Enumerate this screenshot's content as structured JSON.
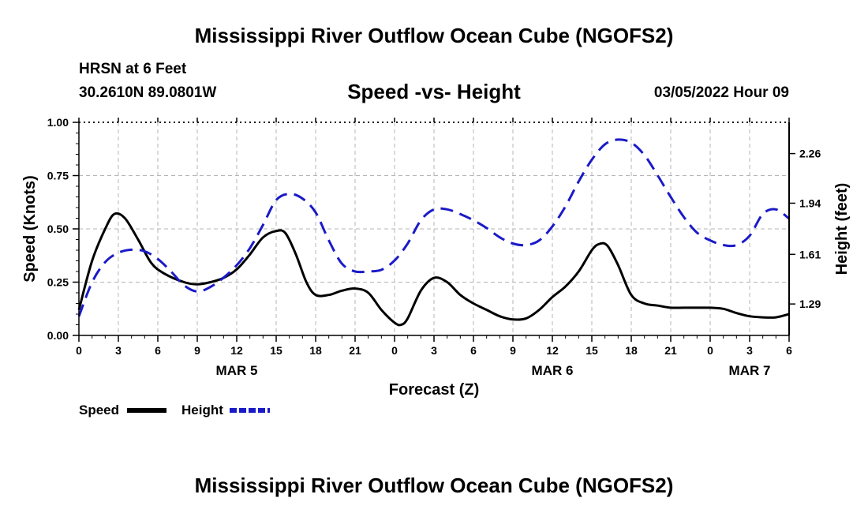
{
  "header": {
    "title": "Mississippi River Outflow Ocean Cube (NGOFS2)",
    "station": "HRSN at 6 Feet",
    "coords": "30.2610N  89.0801W",
    "subtitle": "Speed -vs- Height",
    "datetime": "03/05/2022 Hour 09"
  },
  "footer": {
    "title": "Mississippi River Outflow Ocean Cube (NGOFS2)"
  },
  "chart_data": {
    "type": "line",
    "title": "Speed -vs- Height",
    "xlabel": "Forecast (Z)",
    "ylabel": "Speed (Knots)",
    "y2label": "Height (feet)",
    "xlim": [
      0,
      54
    ],
    "ylim": [
      0,
      1.0
    ],
    "y2lim": [
      1.0872,
      2.4615
    ],
    "grid": true,
    "x_ticks": [
      0,
      3,
      6,
      9,
      12,
      15,
      18,
      21,
      24,
      27,
      30,
      33,
      36,
      39,
      42,
      45,
      48,
      51,
      54
    ],
    "x_tick_labels": [
      "0",
      "3",
      "6",
      "9",
      "12",
      "15",
      "18",
      "21",
      "0",
      "3",
      "6",
      "9",
      "12",
      "15",
      "18",
      "21",
      "0",
      "3",
      "6"
    ],
    "day_labels": [
      {
        "x": 12,
        "label": "MAR 5"
      },
      {
        "x": 36,
        "label": "MAR 6"
      },
      {
        "x": 51,
        "label": "MAR 7"
      }
    ],
    "y_ticks": [
      0,
      0.25,
      0.5,
      0.75,
      1.0
    ],
    "y_tick_labels": [
      "0.00",
      "0.25",
      "0.50",
      "0.75",
      "1.00"
    ],
    "y2_ticks": [
      1.29,
      1.61,
      1.94,
      2.26
    ],
    "y2_tick_labels": [
      "1.29",
      "1.61",
      "1.94",
      "2.26"
    ],
    "series": [
      {
        "name": "Speed",
        "axis": "left",
        "color": "#000000",
        "dash": "solid",
        "x": [
          0,
          1,
          2,
          2.7,
          3.5,
          4.5,
          5.5,
          6.5,
          8,
          9,
          10,
          11,
          12,
          13,
          14,
          15,
          15.7,
          16.5,
          17.3,
          18,
          19,
          20,
          21,
          22,
          23,
          24,
          24.5,
          25,
          26,
          27,
          28,
          29,
          30,
          31,
          32,
          33,
          34,
          35,
          36,
          37,
          38,
          39,
          39.6,
          40.2,
          41,
          42,
          43,
          44,
          45,
          46,
          47,
          48,
          49,
          50,
          51,
          52,
          53,
          54
        ],
        "values": [
          0.12,
          0.35,
          0.5,
          0.57,
          0.55,
          0.45,
          0.34,
          0.29,
          0.25,
          0.24,
          0.25,
          0.27,
          0.31,
          0.38,
          0.46,
          0.49,
          0.48,
          0.38,
          0.25,
          0.19,
          0.19,
          0.21,
          0.22,
          0.2,
          0.12,
          0.06,
          0.05,
          0.08,
          0.21,
          0.27,
          0.25,
          0.19,
          0.15,
          0.12,
          0.09,
          0.075,
          0.08,
          0.12,
          0.18,
          0.23,
          0.3,
          0.4,
          0.43,
          0.42,
          0.33,
          0.19,
          0.15,
          0.14,
          0.13,
          0.13,
          0.13,
          0.13,
          0.125,
          0.105,
          0.09,
          0.085,
          0.085,
          0.1
        ]
      },
      {
        "name": "Height",
        "axis": "right",
        "color": "#1a1ac8",
        "dash": "dashed",
        "x": [
          0,
          1,
          2,
          3,
          4,
          5,
          6,
          7,
          8,
          9,
          10,
          11,
          12,
          13,
          14,
          15,
          16,
          17,
          18,
          19,
          20,
          21,
          22,
          23,
          24,
          25,
          26,
          27,
          28,
          29,
          30,
          31,
          32,
          33,
          34,
          35,
          36,
          37,
          38,
          39,
          40,
          41,
          42,
          43,
          44,
          45,
          46,
          47,
          48,
          49,
          50,
          51,
          52,
          53,
          54
        ],
        "values": [
          1.21,
          1.43,
          1.56,
          1.62,
          1.64,
          1.63,
          1.58,
          1.5,
          1.41,
          1.37,
          1.4,
          1.46,
          1.54,
          1.65,
          1.8,
          1.96,
          2.0,
          1.97,
          1.88,
          1.7,
          1.55,
          1.5,
          1.5,
          1.51,
          1.57,
          1.68,
          1.83,
          1.9,
          1.9,
          1.87,
          1.83,
          1.78,
          1.72,
          1.68,
          1.67,
          1.7,
          1.79,
          1.92,
          2.08,
          2.22,
          2.32,
          2.35,
          2.33,
          2.25,
          2.12,
          1.98,
          1.85,
          1.75,
          1.7,
          1.67,
          1.67,
          1.73,
          1.87,
          1.9,
          1.84
        ]
      }
    ],
    "legend": [
      {
        "label": "Speed",
        "color": "#000000",
        "dash": "solid"
      },
      {
        "label": "Height",
        "color": "#1a1ac8",
        "dash": "dashed"
      }
    ],
    "legend_position": "bottom-left"
  }
}
